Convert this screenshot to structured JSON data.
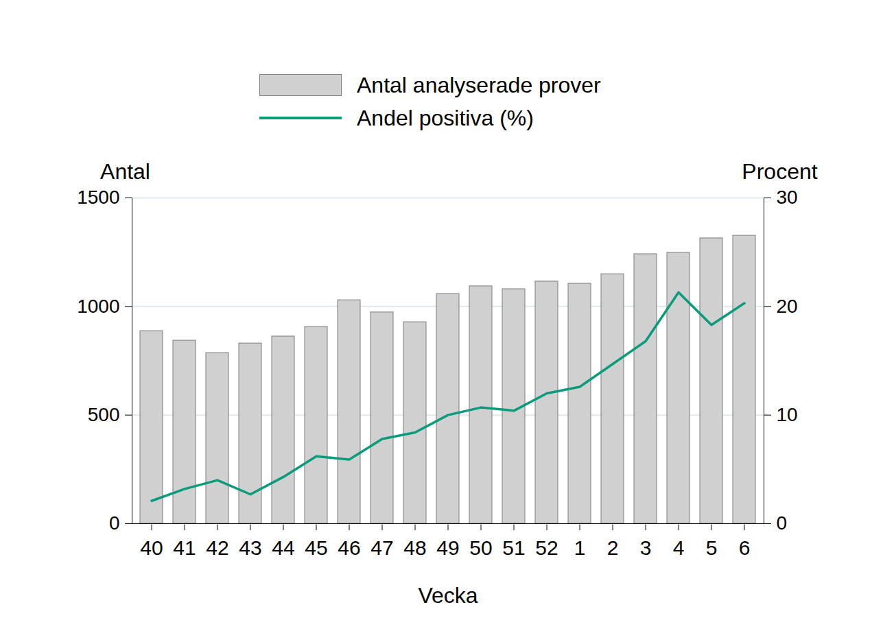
{
  "chart_data": {
    "type": "bar",
    "x_label": "Vecka",
    "y_label": "Antal",
    "y2_label": "Procent",
    "categories": [
      "40",
      "41",
      "42",
      "43",
      "44",
      "45",
      "46",
      "47",
      "48",
      "49",
      "50",
      "51",
      "52",
      "1",
      "2",
      "3",
      "4",
      "5",
      "6"
    ],
    "series": [
      {
        "name": "Antal analyserade prover",
        "type": "bar",
        "color": "#d0d0d0",
        "values": [
          887,
          843,
          786,
          830,
          862,
          906,
          1029,
          973,
          928,
          1058,
          1093,
          1080,
          1115,
          1105,
          1149,
          1241,
          1247,
          1314,
          1326
        ]
      },
      {
        "name": "Andel positiva (%)",
        "type": "line",
        "color": "#0a9b7b",
        "axis": "y2",
        "values": [
          2.1,
          3.2,
          4.0,
          2.7,
          4.3,
          6.2,
          5.9,
          7.8,
          8.4,
          10.0,
          10.7,
          10.4,
          12.0,
          12.6,
          14.7,
          16.8,
          21.3,
          18.3,
          20.3
        ]
      }
    ],
    "ylim": [
      0,
      1500
    ],
    "yticks": [
      0,
      500,
      1000,
      1500
    ],
    "y2lim": [
      0,
      30
    ],
    "y2ticks": [
      0,
      10,
      20,
      30
    ],
    "grid": true,
    "legend": "top"
  }
}
